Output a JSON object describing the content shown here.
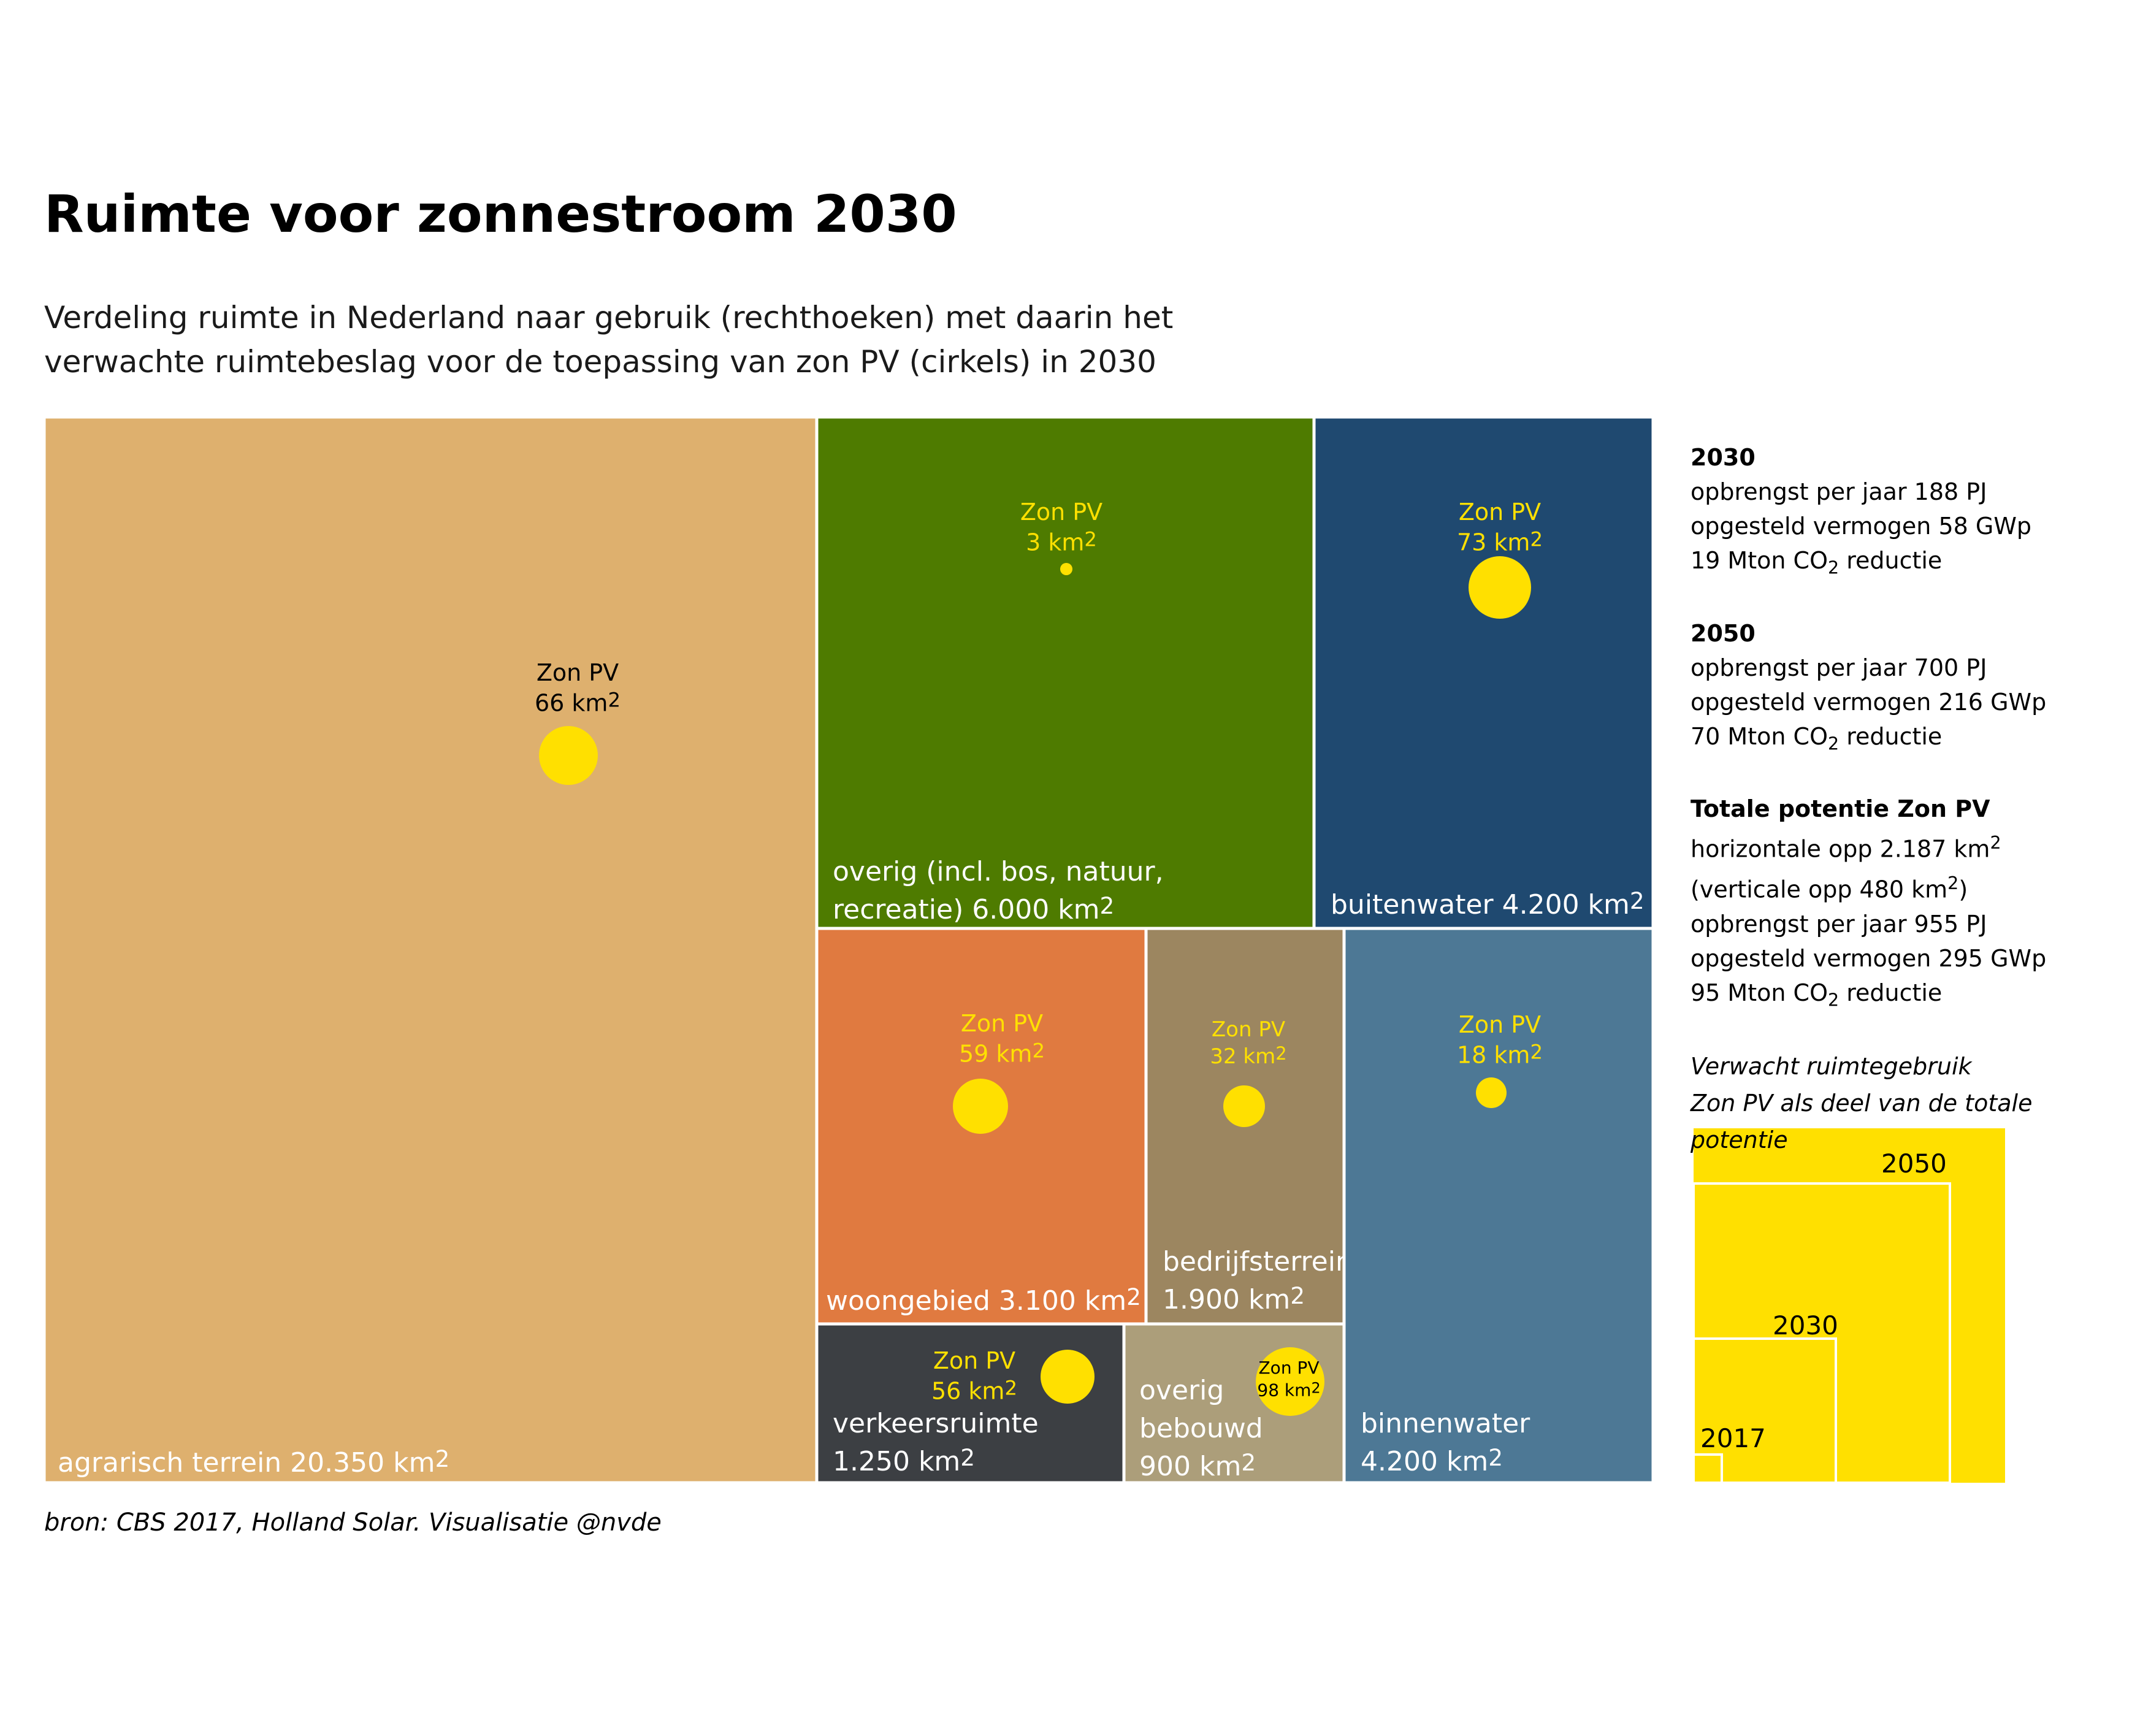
{
  "title": "Ruimte voor zonnestroom 2030",
  "subtitle": [
    "Verdeling ruimte in Nederland naar gebruik (rechthoeken) met daarin het",
    "verwachte ruimtebeslag voor de toepassing van zon PV (cirkels) in 2030"
  ],
  "chart_data": {
    "type": "treemap",
    "unit": "km2",
    "pv_label": "Zon PV",
    "categories": [
      {
        "name": "agrarisch terrein",
        "label": "agrarisch terrein 20.350 km2",
        "area": 20350,
        "pv": 66,
        "pv_label": "66 km2",
        "color": "#DEB06E"
      },
      {
        "name": "overig (incl. bos, natuur, recreatie)",
        "label_lines": [
          "overig (incl. bos, natuur,",
          "recreatie) 6.000 km2"
        ],
        "area": 6000,
        "pv": 3,
        "pv_label": "3 km2",
        "color": "#4E7B00"
      },
      {
        "name": "buitenwater",
        "label": "buitenwater 4.200 km2",
        "area": 4200,
        "pv": 73,
        "pv_label": "73 km2",
        "color": "#1F4970"
      },
      {
        "name": "woongebied",
        "label": "woongebied 3.100 km2",
        "area": 3100,
        "pv": 59,
        "pv_label": "59 km2",
        "color": "#E07A40"
      },
      {
        "name": "bedrijfsterrein",
        "label_lines": [
          "bedrijfsterrein",
          "1.900 km2"
        ],
        "area": 1900,
        "pv": 32,
        "pv_label": "32 km2",
        "color": "#9C8660"
      },
      {
        "name": "binnenwater",
        "label_lines": [
          "binnenwater",
          "4.200 km2"
        ],
        "area": 4200,
        "pv": 18,
        "pv_label": "18 km2",
        "color": "#4D7895"
      },
      {
        "name": "verkeersruimte",
        "label_lines": [
          "verkeersruimte",
          "1.250 km2"
        ],
        "area": 1250,
        "pv": 56,
        "pv_label": "56 km2",
        "color": "#3C3F43"
      },
      {
        "name": "overig bebouwd",
        "label_lines": [
          "overig",
          "bebouwd",
          "900 km2"
        ],
        "area": 900,
        "pv": 98,
        "pv_label": "98 km2",
        "color": "#AC9E7A"
      }
    ],
    "pv_circle_color": "#FFE000",
    "potential_chart": {
      "type": "nested-squares",
      "color": "#FFE000",
      "series": [
        {
          "name": "2050",
          "label": "2050"
        },
        {
          "name": "2030",
          "label": "2030"
        },
        {
          "name": "2017",
          "label": "2017"
        }
      ]
    }
  },
  "side": {
    "blocks": [
      {
        "heading": "2030",
        "lines": [
          "opbrengst per jaar 188 PJ",
          "opgesteld vermogen 58 GWp",
          "19 Mton CO2 reductie"
        ]
      },
      {
        "heading": "2050",
        "lines": [
          "opbrengst per jaar 700 PJ",
          "opgesteld vermogen 216 GWp",
          "70 Mton CO2 reductie"
        ]
      },
      {
        "heading": "Totale potentie Zon PV",
        "lines": [
          "horizontale opp 2.187 km2",
          "(verticale opp 480 km2)",
          "opbrengst per jaar 955 PJ",
          "opgesteld vermogen 295 GWp",
          "95 Mton CO2 reductie"
        ]
      }
    ],
    "note_lines": [
      "Verwacht ruimtegebruik",
      "Zon PV als deel van de totale",
      "potentie"
    ]
  },
  "source": "bron: CBS 2017, Holland Solar. Visualisatie @nvde"
}
